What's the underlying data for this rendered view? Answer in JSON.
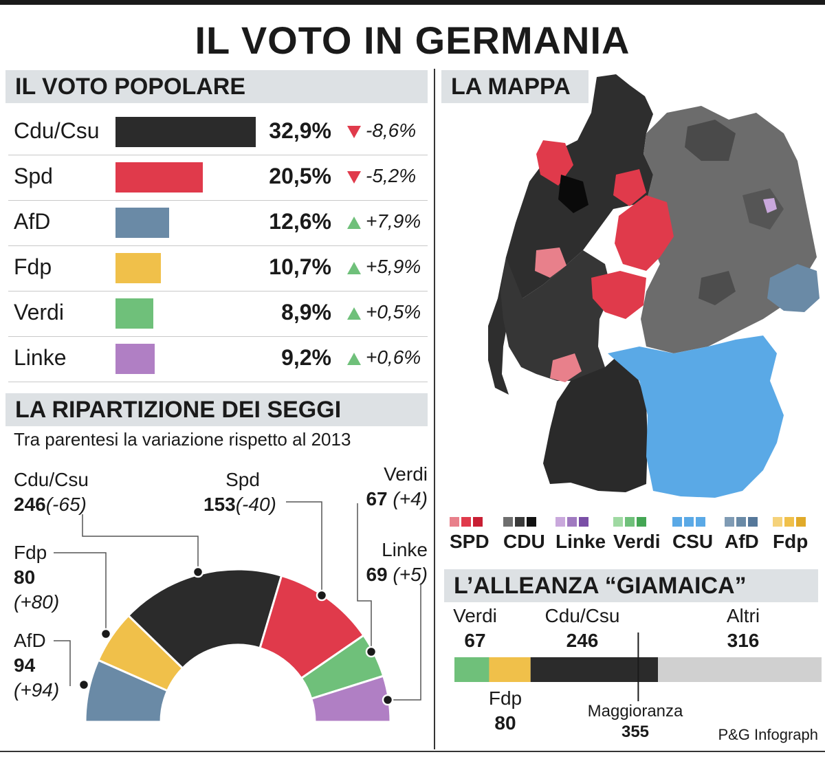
{
  "title": "IL VOTO IN GERMANIA",
  "popular_vote": {
    "header": "IL VOTO POPOLARE",
    "rows": [
      {
        "party": "Cdu/Csu",
        "pct": "32,9%",
        "change": "-8,6%",
        "dir": "down",
        "color": "#2b2b2b"
      },
      {
        "party": "Spd",
        "pct": "20,5%",
        "change": "-5,2%",
        "dir": "down",
        "color": "#e03a4b"
      },
      {
        "party": "AfD",
        "pct": "12,6%",
        "change": "+7,9%",
        "dir": "up",
        "color": "#6a8aa6"
      },
      {
        "party": "Fdp",
        "pct": "10,7%",
        "change": "+5,9%",
        "dir": "up",
        "color": "#f0c04a"
      },
      {
        "party": "Verdi",
        "pct": "8,9%",
        "change": "+0,5%",
        "dir": "up",
        "color": "#6fc07a"
      },
      {
        "party": "Linke",
        "pct": "9,2%",
        "change": "+0,6%",
        "dir": "up",
        "color": "#b07fc4"
      }
    ]
  },
  "seats": {
    "header": "LA RIPARTIZIONE DEI SEGGI",
    "subtitle": "Tra parentesi la variazione rispetto al 2013",
    "parties": [
      {
        "name": "AfD",
        "seats": "94",
        "change": "(+94)"
      },
      {
        "name": "Fdp",
        "seats": "80",
        "change": "(+80)"
      },
      {
        "name": "Cdu/Csu",
        "seats": "246",
        "change": "(-65)"
      },
      {
        "name": "Spd",
        "seats": "153",
        "change": "(-40)"
      },
      {
        "name": "Verdi",
        "seats": "67",
        "change": "(+4)"
      },
      {
        "name": "Linke",
        "seats": "69",
        "change": "(+5)"
      }
    ]
  },
  "map": {
    "header": "LA MAPPA",
    "legend": [
      {
        "label": "SPD",
        "colors": [
          "#e8808b",
          "#e03a4b",
          "#c81f33"
        ]
      },
      {
        "label": "CDU",
        "colors": [
          "#6e6e6e",
          "#3a3a3a",
          "#111111"
        ]
      },
      {
        "label": "Linke",
        "colors": [
          "#c9a8dc",
          "#a07ac0",
          "#7a4fa6"
        ]
      },
      {
        "label": "Verdi",
        "colors": [
          "#9fd9a2",
          "#6fc07a",
          "#44a654"
        ]
      },
      {
        "label": "CSU",
        "colors": [
          "#5aa9e6",
          "#5aa9e6",
          "#5aa9e6"
        ]
      },
      {
        "label": "AfD",
        "colors": [
          "#7f9bb4",
          "#6a8aa6",
          "#56789a"
        ]
      },
      {
        "label": "Fdp",
        "colors": [
          "#f5d27a",
          "#f0c04a",
          "#e0aa2a"
        ]
      }
    ]
  },
  "coalition": {
    "header": "L’ALLEANZA “GIAMAICA”",
    "items": [
      {
        "name": "Verdi",
        "value": "67"
      },
      {
        "name": "Fdp",
        "value": "80"
      },
      {
        "name": "Cdu/Csu",
        "value": "246"
      },
      {
        "name": "Altri",
        "value": "316"
      }
    ],
    "majority_label": "Maggioranza",
    "majority_value": "355"
  },
  "credit": "P&G Infograph",
  "chart_data": [
    {
      "type": "bar",
      "title": "IL VOTO POPOLARE",
      "categories": [
        "Cdu/Csu",
        "Spd",
        "AfD",
        "Fdp",
        "Verdi",
        "Linke"
      ],
      "values": [
        32.9,
        20.5,
        12.6,
        10.7,
        8.9,
        9.2
      ],
      "changes": [
        -8.6,
        -5.2,
        7.9,
        5.9,
        0.5,
        0.6
      ]
    },
    {
      "type": "pie",
      "title": "LA RIPARTIZIONE DEI SEGGI",
      "categories": [
        "AfD",
        "Fdp",
        "Cdu/Csu",
        "Spd",
        "Verdi",
        "Linke"
      ],
      "values": [
        94,
        80,
        246,
        153,
        67,
        69
      ],
      "changes": [
        94,
        80,
        -65,
        -40,
        4,
        5
      ],
      "colors": [
        "#6a8aa6",
        "#f0c04a",
        "#2b2b2b",
        "#e03a4b",
        "#6fc07a",
        "#b07fc4"
      ]
    },
    {
      "type": "bar",
      "title": "L’ALLEANZA “GIAMAICA”",
      "categories": [
        "Verdi",
        "Fdp",
        "Cdu/Csu",
        "Altri"
      ],
      "values": [
        67,
        80,
        246,
        316
      ],
      "colors": [
        "#6fc07a",
        "#f0c04a",
        "#2b2b2b",
        "#d0d0d0"
      ],
      "majority": 355
    }
  ]
}
